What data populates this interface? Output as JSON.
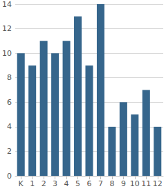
{
  "chart_data": {
    "type": "bar",
    "categories": [
      "K",
      "1",
      "2",
      "3",
      "4",
      "5",
      "6",
      "7",
      "8",
      "9",
      "10",
      "11",
      "12"
    ],
    "values": [
      10,
      9,
      11,
      10,
      11,
      13,
      9,
      14,
      4,
      6,
      5,
      7,
      4
    ],
    "color": "#36668c",
    "ylim": [
      0,
      14
    ],
    "yticks": [
      0,
      2,
      4,
      6,
      8,
      10,
      12,
      14
    ],
    "grid": true
  }
}
